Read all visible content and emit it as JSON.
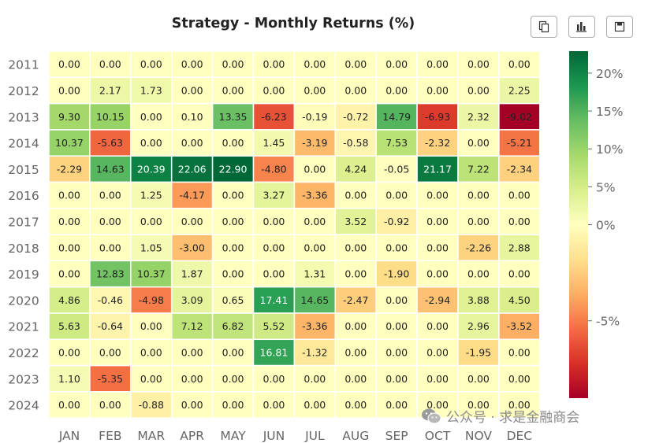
{
  "toolbar": {
    "buttons": [
      {
        "name": "copy-button",
        "icon": "copy-icon"
      },
      {
        "name": "chart-button",
        "icon": "bar-chart-icon"
      },
      {
        "name": "save-button",
        "icon": "save-icon"
      }
    ]
  },
  "watermark": {
    "text": "公众号 · 求是金融商会",
    "icon": "wechat-icon"
  },
  "chart_data": {
    "type": "heatmap",
    "title": "Strategy - Monthly Returns (%)",
    "x_labels": [
      "JAN",
      "FEB",
      "MAR",
      "APR",
      "MAY",
      "JUN",
      "JUL",
      "AUG",
      "SEP",
      "OCT",
      "NOV",
      "DEC"
    ],
    "y_labels": [
      "2011",
      "2012",
      "2013",
      "2014",
      "2015",
      "2016",
      "2017",
      "2018",
      "2019",
      "2020",
      "2021",
      "2022",
      "2023",
      "2024"
    ],
    "values": [
      [
        0.0,
        0.0,
        0.0,
        0.0,
        0.0,
        0.0,
        0.0,
        0.0,
        0.0,
        0.0,
        0.0,
        0.0
      ],
      [
        0.0,
        2.17,
        1.73,
        0.0,
        0.0,
        0.0,
        0.0,
        0.0,
        0.0,
        0.0,
        0.0,
        2.25
      ],
      [
        9.3,
        10.15,
        0.0,
        0.1,
        13.35,
        -6.23,
        -0.19,
        -0.72,
        14.79,
        -6.93,
        2.32,
        -9.02
      ],
      [
        10.37,
        -5.63,
        0.0,
        0.0,
        0.0,
        1.45,
        -3.19,
        -0.58,
        7.53,
        -2.32,
        0.0,
        -5.21
      ],
      [
        -2.29,
        14.63,
        20.39,
        22.06,
        22.9,
        -4.8,
        0.0,
        4.24,
        -0.05,
        21.17,
        7.22,
        -2.34
      ],
      [
        0.0,
        0.0,
        1.25,
        -4.17,
        0.0,
        3.27,
        -3.36,
        0.0,
        0.0,
        0.0,
        0.0,
        0.0
      ],
      [
        0.0,
        0.0,
        0.0,
        0.0,
        0.0,
        0.0,
        0.0,
        3.52,
        -0.92,
        0.0,
        0.0,
        0.0
      ],
      [
        0.0,
        0.0,
        1.05,
        -3.0,
        0.0,
        0.0,
        0.0,
        0.0,
        0.0,
        0.0,
        -2.26,
        2.88
      ],
      [
        0.0,
        12.83,
        10.37,
        1.87,
        0.0,
        0.0,
        1.31,
        0.0,
        -1.9,
        0.0,
        0.0,
        0.0
      ],
      [
        4.86,
        -0.46,
        -4.98,
        3.09,
        0.65,
        17.41,
        14.65,
        -2.47,
        0.0,
        -2.94,
        3.88,
        4.5
      ],
      [
        5.63,
        -0.64,
        0.0,
        7.12,
        6.82,
        5.52,
        -3.36,
        0.0,
        0.0,
        0.0,
        2.96,
        -3.52
      ],
      [
        0.0,
        0.0,
        0.0,
        0.0,
        0.0,
        16.81,
        -1.32,
        0.0,
        0.0,
        0.0,
        -1.95,
        0.0
      ],
      [
        1.1,
        -5.35,
        0.0,
        0.0,
        0.0,
        0.0,
        0.0,
        0.0,
        0.0,
        0.0,
        0.0,
        0.0
      ],
      [
        0.0,
        0.0,
        -0.88,
        0.0,
        0.0,
        0.0,
        0.0,
        0.0,
        0.0,
        0.0,
        0.0,
        0.0
      ]
    ],
    "colorbar": {
      "ticks": [
        20,
        15,
        10,
        5,
        0,
        -5
      ],
      "tick_labels": [
        "20%",
        "15%",
        "10%",
        "5%",
        "0%",
        "-5%"
      ],
      "vmin": -9.02,
      "vmax": 22.9
    },
    "colormap": "RdYlGn",
    "legend_position": "right"
  }
}
